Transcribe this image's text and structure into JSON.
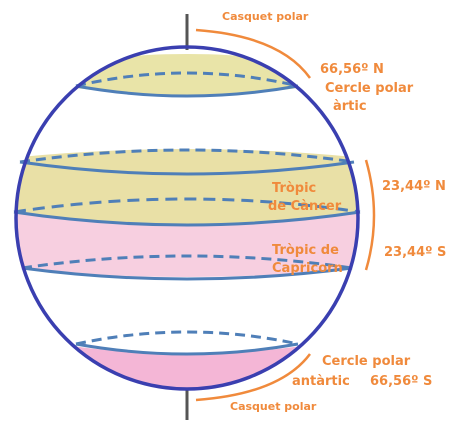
{
  "labels": {
    "cap_north": "Casquet polar",
    "lat_n66": "66,56º N",
    "arctic_l1": "Cercle polar",
    "arctic_l2": "àrtic",
    "cancer_l1": "Tròpic",
    "cancer_l2": "de Càncer",
    "lat_n23": "23,44º N",
    "capricorn_l1": "Tròpic de",
    "capricorn_l2": "Capricorn",
    "lat_s23": "23,44º S",
    "antarctic_l1": "Cercle polar",
    "antarctic_l2": "antàrtic",
    "lat_s66": "66,56º S",
    "cap_south": "Casquet polar"
  },
  "colors": {
    "globe_outline": "#3a3fb0",
    "dashed_lines": "#4f7fb8",
    "axis": "#555555",
    "polar_cap_north": "#e9e4a8",
    "tropic_band_north": "#e9e0a6",
    "tropic_band_south": "#f7cfe0",
    "polar_cap_south": "#f4b6d6",
    "label_text": "#f08a3c"
  }
}
